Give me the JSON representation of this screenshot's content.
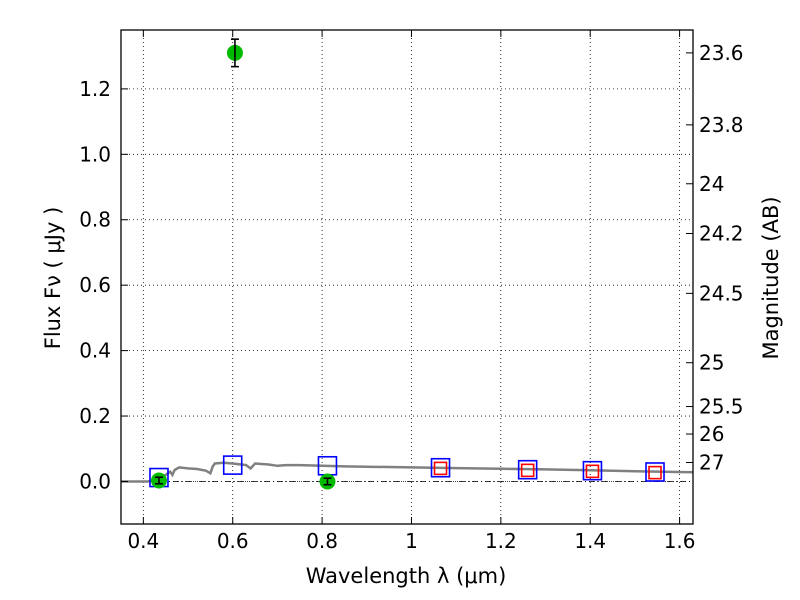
{
  "chart_data": {
    "type": "scatter",
    "title": "",
    "xlabel": "Wavelength  λ (μm)",
    "ylabel": "Flux  Fν  ( μJy )",
    "ylabel_right": "Magnitude (AB)",
    "xlim": [
      0.35,
      1.63
    ],
    "ylim": [
      -0.13,
      1.38
    ],
    "grid": true,
    "legend": "none",
    "x_ticks": [
      0.4,
      0.6,
      0.8,
      1.0,
      1.2,
      1.4,
      1.6
    ],
    "x_tick_labels": [
      "0.4",
      "0.6",
      "0.8",
      "1",
      "1.2",
      "1.4",
      "1.6"
    ],
    "y_ticks": [
      0.0,
      0.2,
      0.4,
      0.6,
      0.8,
      1.0,
      1.2
    ],
    "y_tick_labels": [
      "0.0",
      "0.2",
      "0.4",
      "0.6",
      "0.8",
      "1.0",
      "1.2"
    ],
    "right_ticks": [
      {
        "label": "23.6",
        "flux": 1.31
      },
      {
        "label": "23.8",
        "flux": 1.09
      },
      {
        "label": "24",
        "flux": 0.91
      },
      {
        "label": "24.2",
        "flux": 0.758
      },
      {
        "label": "24.5",
        "flux": 0.575
      },
      {
        "label": "25",
        "flux": 0.363
      },
      {
        "label": "25.5",
        "flux": 0.229
      },
      {
        "label": "26",
        "flux": 0.145
      },
      {
        "label": "27",
        "flux": 0.058
      }
    ],
    "zero_line": 0.0,
    "series": [
      {
        "kind": "line",
        "color": "#808080",
        "points": [
          [
            0.35,
            0.0
          ],
          [
            0.41,
            0.0
          ],
          [
            0.43,
            0.005
          ],
          [
            0.45,
            0.02
          ],
          [
            0.46,
            0.03
          ],
          [
            0.465,
            0.02
          ],
          [
            0.47,
            0.035
          ],
          [
            0.48,
            0.043
          ],
          [
            0.5,
            0.04
          ],
          [
            0.52,
            0.038
          ],
          [
            0.54,
            0.033
          ],
          [
            0.55,
            0.025
          ],
          [
            0.555,
            0.045
          ],
          [
            0.56,
            0.055
          ],
          [
            0.58,
            0.057
          ],
          [
            0.6,
            0.055
          ],
          [
            0.63,
            0.05
          ],
          [
            0.64,
            0.04
          ],
          [
            0.65,
            0.055
          ],
          [
            0.68,
            0.052
          ],
          [
            0.7,
            0.048
          ],
          [
            0.72,
            0.05
          ],
          [
            0.75,
            0.05
          ],
          [
            0.8,
            0.048
          ],
          [
            0.85,
            0.046
          ],
          [
            0.9,
            0.045
          ],
          [
            1.0,
            0.043
          ],
          [
            1.1,
            0.041
          ],
          [
            1.2,
            0.039
          ],
          [
            1.3,
            0.037
          ],
          [
            1.4,
            0.034
          ],
          [
            1.5,
            0.031
          ],
          [
            1.63,
            0.028
          ]
        ]
      },
      {
        "kind": "markers",
        "marker": "square",
        "color": "#0000ff",
        "points": [
          [
            0.435,
            0.012
          ],
          [
            0.6,
            0.05
          ],
          [
            0.812,
            0.048
          ],
          [
            1.065,
            0.042
          ],
          [
            1.26,
            0.036
          ],
          [
            1.405,
            0.033
          ],
          [
            1.545,
            0.029
          ]
        ]
      },
      {
        "kind": "markers",
        "marker": "square",
        "color": "#ff0000",
        "points": [
          [
            1.065,
            0.04
          ],
          [
            1.26,
            0.034
          ],
          [
            1.405,
            0.031
          ],
          [
            1.545,
            0.027
          ]
        ]
      },
      {
        "kind": "markers",
        "marker": "circle",
        "color": "#00bb00",
        "errorbars": true,
        "points": [
          [
            0.435,
            0.003,
            0.01
          ],
          [
            0.605,
            1.31,
            0.042
          ],
          [
            0.812,
            0.0,
            0.01
          ]
        ]
      }
    ]
  }
}
